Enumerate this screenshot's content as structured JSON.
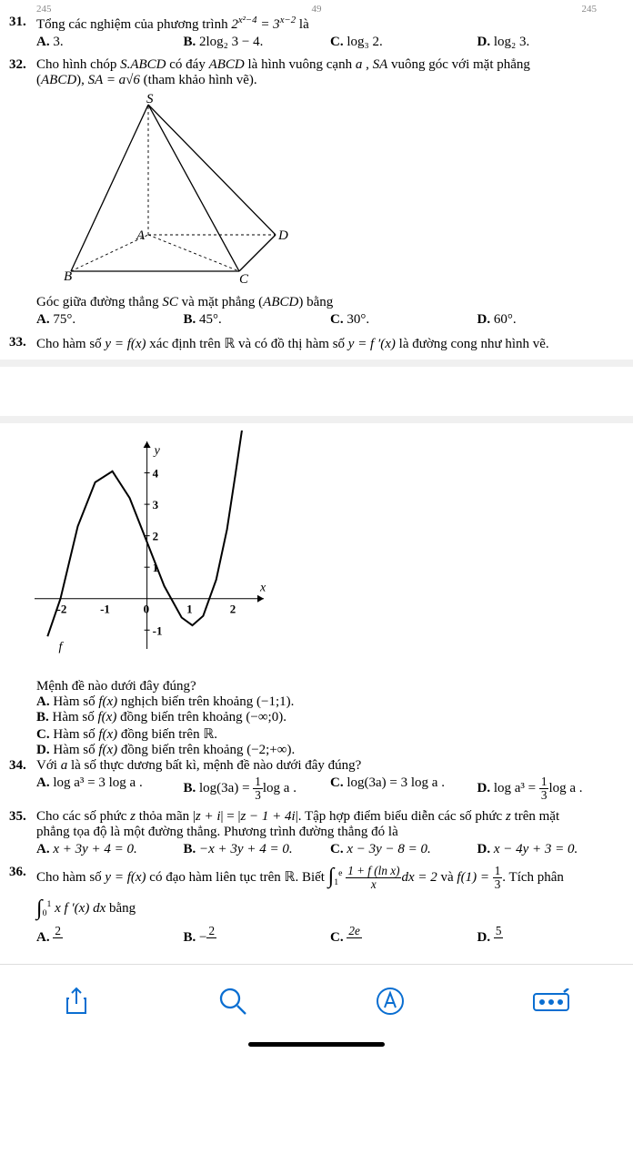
{
  "page_hdr": {
    "l1": "245",
    "c1": "49",
    "r1": "245"
  },
  "q31": {
    "num": "31.",
    "text_pre": "Tổng các nghiệm của phương trình ",
    "eq": "2^{x²−4} = 3^{x−2}",
    "text_post": " là",
    "opts": {
      "A": "3.",
      "B": "2log₂ 3 − 4.",
      "C": "log₃ 2.",
      "D": "log₂ 3."
    }
  },
  "q32": {
    "num": "32.",
    "line1_a": "Cho hình chóp ",
    "line1_b": "S.ABCD",
    "line1_c": " có đáy ",
    "line1_d": "ABCD",
    "line1_e": " là hình vuông cạnh ",
    "line1_f": "a",
    "line1_g": " , ",
    "line1_h": "SA",
    "line1_i": " vuông góc với mặt phẳng",
    "line2_a": "(",
    "line2_b": "ABCD",
    "line2_c": "), ",
    "line2_d": "SA = a√6",
    "line2_e": " (tham khảo hình vẽ).",
    "fig_labels": {
      "S": "S",
      "A": "A",
      "B": "B",
      "C": "C",
      "D": "D"
    },
    "after_a": "Góc giữa đường thẳng ",
    "after_b": "SC",
    "after_c": " và mặt phẳng (",
    "after_d": "ABCD",
    "after_e": ") bằng",
    "opts": {
      "A": "75°.",
      "B": "45°.",
      "C": "30°.",
      "D": "60°."
    }
  },
  "q33": {
    "num": "33.",
    "text_a": "Cho hàm số ",
    "text_b": "y = f(x)",
    "text_c": " xác định trên ℝ và có đồ thị hàm số ",
    "text_d": "y = f ′(x)",
    "text_e": " là đường cong như hình vẽ.",
    "chart": {
      "type": "line",
      "curve_points": [
        [
          -2.3,
          -1.2
        ],
        [
          -2.0,
          0
        ],
        [
          -1.6,
          2.3
        ],
        [
          -1.2,
          3.7
        ],
        [
          -0.8,
          4.05
        ],
        [
          -0.4,
          3.2
        ],
        [
          0.0,
          1.8
        ],
        [
          0.4,
          0.4
        ],
        [
          0.8,
          -0.6
        ],
        [
          1.05,
          -0.85
        ],
        [
          1.3,
          -0.55
        ],
        [
          1.6,
          0.6
        ],
        [
          1.85,
          2.2
        ],
        [
          2.05,
          4.0
        ],
        [
          2.2,
          5.4
        ]
      ],
      "x_ticks": [
        -2,
        -1,
        0,
        1,
        2
      ],
      "y_ticks": [
        -1,
        1,
        2,
        3,
        4
      ],
      "xlim": [
        -2.6,
        2.7
      ],
      "ylim": [
        -1.6,
        5.0
      ],
      "axis_color": "#000000",
      "curve_color": "#000000",
      "tick_fontsize": 13,
      "axis_label_x": "x",
      "axis_label_y": "y",
      "f_label": "f"
    },
    "stem": "Mệnh đề nào dưới đây đúng?",
    "optA_a": "Hàm số ",
    "optA_b": "f(x)",
    "optA_c": " nghịch biến trên khoảng (−1;1).",
    "optB_a": "Hàm số ",
    "optB_b": "f(x)",
    "optB_c": " đồng biến trên khoảng (−∞;0).",
    "optC_a": "Hàm số ",
    "optC_b": "f(x)",
    "optC_c": " đồng biến trên ℝ.",
    "optD_a": "Hàm số ",
    "optD_b": "f(x)",
    "optD_c": " đồng biến trên khoảng (−2;+∞)."
  },
  "q34": {
    "num": "34.",
    "text_a": "Với ",
    "text_b": "a",
    "text_c": " là số thực dương bất kì, mệnh đề nào dưới đây đúng?",
    "opts": {
      "A": "log a³ = 3 log a .",
      "B_pre": "log(3a) = ",
      "B_num": "1",
      "B_den": "3",
      "B_post": "log a .",
      "C": "log(3a) = 3 log a .",
      "D_pre": "log a³ = ",
      "D_num": "1",
      "D_den": "3",
      "D_post": "log a ."
    }
  },
  "q35": {
    "num": "35.",
    "line1_a": "Cho các số phức ",
    "line1_b": "z",
    "line1_c": " thỏa mãn |",
    "line1_d": "z + i",
    "line1_e": "| = |",
    "line1_f": "z − 1 + 4i",
    "line1_g": "|. Tập hợp điểm biểu diễn các số phức ",
    "line1_h": "z",
    "line1_i": " trên mặt",
    "line2": "phẳng tọa độ là một đường thẳng. Phương trình đường thẳng đó là",
    "opts": {
      "A": "x + 3y + 4 = 0.",
      "B": "−x + 3y + 4 = 0.",
      "C": "x − 3y − 8 = 0.",
      "D": "x − 4y + 3 = 0."
    }
  },
  "q36": {
    "num": "36.",
    "line1_a": "Cho hàm số ",
    "line1_b": "y = f(x)",
    "line1_c": " có đạo hàm liên tục trên ℝ. Biết ",
    "int1_lo": "1",
    "int1_hi": "e",
    "int1_num": "1 + f (ln x)",
    "int1_den": "x",
    "int1_dx": "dx = 2",
    "line1_d": " và ",
    "line1_e": "f(1) = ",
    "f1_num": "1",
    "f1_den": "3",
    "line1_f": ". Tích phân",
    "int2_lo": "0",
    "int2_hi": "1",
    "int2_body": "x f ′(x) dx",
    "int2_post": " bằng",
    "opts": {
      "A_num": "2",
      "A_den": "",
      "B_pre": "−",
      "B_num": "2",
      "B_den": "",
      "C_num": "2e",
      "C_den": "",
      "D_num": "5",
      "D_den": ""
    }
  },
  "toolbar": {
    "share": "share-icon",
    "search": "search-icon",
    "annotate": "annotate-icon",
    "draw": "draw-icon"
  },
  "colors": {
    "toolbar_blue": "#0a6ed1",
    "text": "#000000",
    "divider": "#f0f0f0"
  }
}
